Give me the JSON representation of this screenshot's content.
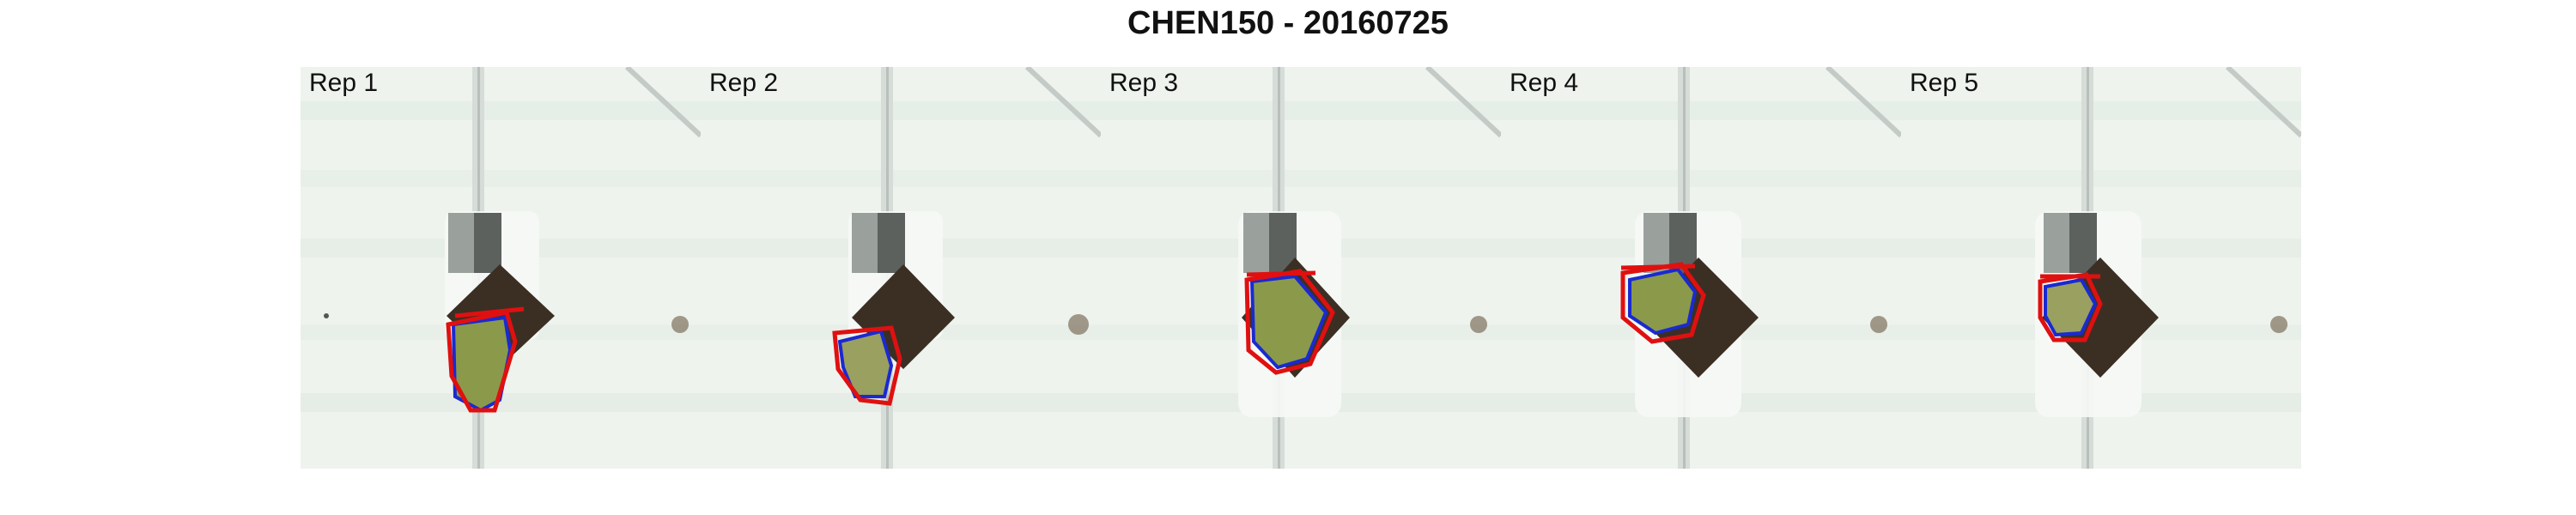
{
  "title": "CHEN150 - 20160725",
  "panels": [
    {
      "label": "Rep 1"
    },
    {
      "label": "Rep 2"
    },
    {
      "label": "Rep 3"
    },
    {
      "label": "Rep 4"
    },
    {
      "label": "Rep 5"
    }
  ],
  "colors": {
    "greenhouse_background": "#eef3ee",
    "soil": "#3b2f24",
    "plant_leaf": "#8a9a4a",
    "outline_blue": "#1a2ad0",
    "hull_red": "#e01010"
  }
}
